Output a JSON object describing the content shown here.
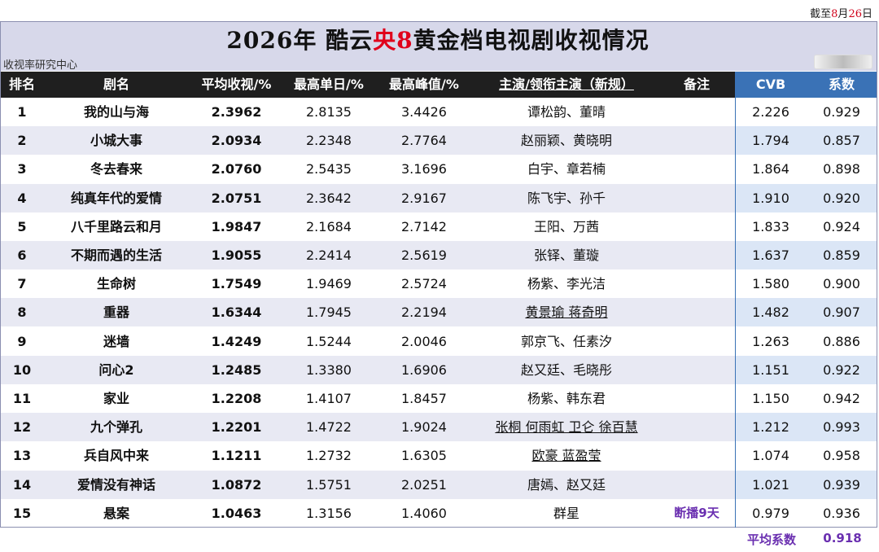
{
  "deadline": {
    "prefix": "截至",
    "month": "8",
    "month_unit": "月",
    "day": "26",
    "day_unit": "日"
  },
  "title": {
    "part1": "2026年 酷云",
    "highlight": "央8",
    "part2": "黄金档电视剧收视情况"
  },
  "source": "收视率研究中心",
  "headers": {
    "rank": "排名",
    "name": "剧名",
    "avg": "平均收视/%",
    "max_day": "最高单日/%",
    "peak": "最高峰值/%",
    "cast": "主演/领衔主演（新规）",
    "note": "备注",
    "cvb": "CVB",
    "coef": "系数"
  },
  "rows": [
    {
      "rank": "1",
      "name": "我的山与海",
      "avg": "2.3962",
      "max_day": "2.8135",
      "peak": "3.4426",
      "cast": "谭松韵、董晴",
      "note": "",
      "cvb": "2.226",
      "coef": "0.929"
    },
    {
      "rank": "2",
      "name": "小城大事",
      "avg": "2.0934",
      "max_day": "2.2348",
      "peak": "2.7764",
      "cast": "赵丽颖、黄晓明",
      "note": "",
      "cvb": "1.794",
      "coef": "0.857"
    },
    {
      "rank": "3",
      "name": "冬去春来",
      "avg": "2.0760",
      "max_day": "2.5435",
      "peak": "3.1696",
      "cast": "白宇、章若楠",
      "note": "",
      "cvb": "1.864",
      "coef": "0.898"
    },
    {
      "rank": "4",
      "name": "纯真年代的爱情",
      "avg": "2.0751",
      "max_day": "2.3642",
      "peak": "2.9167",
      "cast": "陈飞宇、孙千",
      "note": "",
      "cvb": "1.910",
      "coef": "0.920"
    },
    {
      "rank": "5",
      "name": "八千里路云和月",
      "avg": "1.9847",
      "max_day": "2.1684",
      "peak": "2.7142",
      "cast": "王阳、万茜",
      "note": "",
      "cvb": "1.833",
      "coef": "0.924"
    },
    {
      "rank": "6",
      "name": "不期而遇的生活",
      "avg": "1.9055",
      "max_day": "2.2414",
      "peak": "2.5619",
      "cast": "张铎、董璇",
      "note": "",
      "cvb": "1.637",
      "coef": "0.859"
    },
    {
      "rank": "7",
      "name": "生命树",
      "avg": "1.7549",
      "max_day": "1.9469",
      "peak": "2.5724",
      "cast": "杨紫、李光洁",
      "note": "",
      "cvb": "1.580",
      "coef": "0.900"
    },
    {
      "rank": "8",
      "name": "重器",
      "avg": "1.6344",
      "max_day": "1.7945",
      "peak": "2.2194",
      "cast": "黄景瑜 蒋奇明",
      "note": "",
      "cvb": "1.482",
      "coef": "0.907",
      "cast_ul": true
    },
    {
      "rank": "9",
      "name": "迷墙",
      "avg": "1.4249",
      "max_day": "1.5244",
      "peak": "2.0046",
      "cast": "郭京飞、任素汐",
      "note": "",
      "cvb": "1.263",
      "coef": "0.886"
    },
    {
      "rank": "10",
      "name": "问心2",
      "avg": "1.2485",
      "max_day": "1.3380",
      "peak": "1.6906",
      "cast": "赵又廷、毛晓彤",
      "note": "",
      "cvb": "1.151",
      "coef": "0.922"
    },
    {
      "rank": "11",
      "name": "家业",
      "avg": "1.2208",
      "max_day": "1.4107",
      "peak": "1.8457",
      "cast": "杨紫、韩东君",
      "note": "",
      "cvb": "1.150",
      "coef": "0.942"
    },
    {
      "rank": "12",
      "name": "九个弹孔",
      "avg": "1.2201",
      "max_day": "1.4722",
      "peak": "1.9024",
      "cast": "张桐 何雨虹 卫仑 徐百慧",
      "note": "",
      "cvb": "1.212",
      "coef": "0.993",
      "cast_ul": true
    },
    {
      "rank": "13",
      "name": "兵自风中来",
      "avg": "1.1211",
      "max_day": "1.2732",
      "peak": "1.6305",
      "cast": "欧豪 蓝盈莹",
      "note": "",
      "cvb": "1.074",
      "coef": "0.958",
      "cast_ul": true
    },
    {
      "rank": "14",
      "name": "爱情没有神话",
      "avg": "1.0872",
      "max_day": "1.5751",
      "peak": "2.0251",
      "cast": "唐嫣、赵又廷",
      "note": "",
      "cvb": "1.021",
      "coef": "0.939"
    },
    {
      "rank": "15",
      "name": "悬案",
      "avg": "1.0463",
      "max_day": "1.3156",
      "peak": "1.4060",
      "cast": "群星",
      "note": "断播9天",
      "cvb": "0.979",
      "coef": "0.936"
    }
  ],
  "footer": {
    "avg_coef_label": "平均系数",
    "avg_coef_value": "0.918"
  }
}
